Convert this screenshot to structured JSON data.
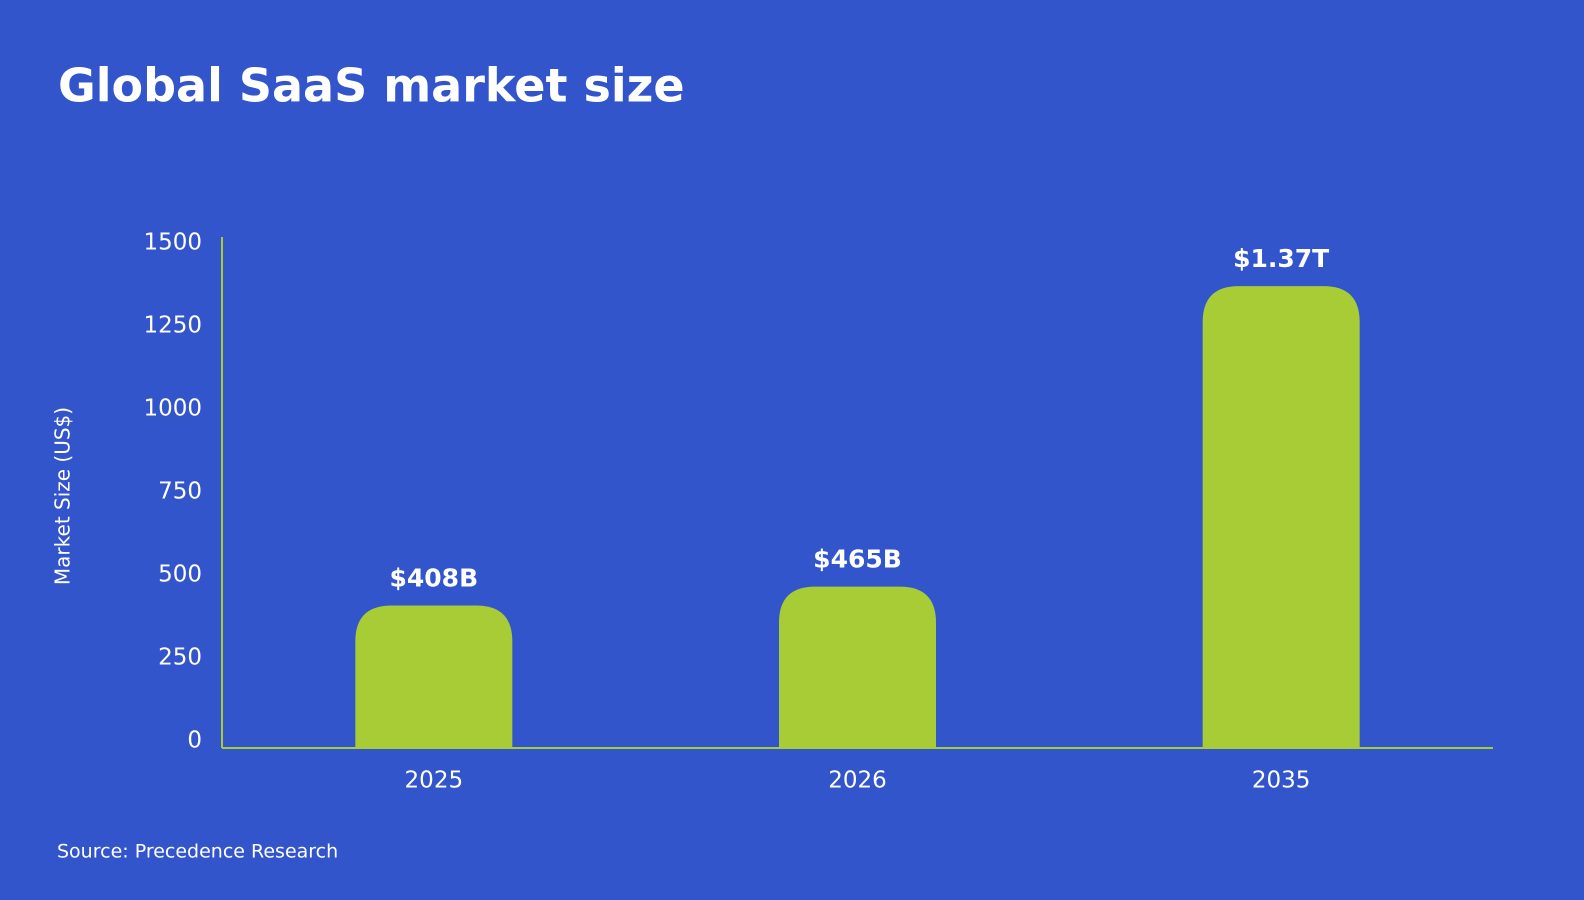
{
  "chart_data": {
    "type": "bar",
    "title": "Global SaaS market size",
    "y_label": "Market Size (US$)",
    "source": "Source: Precedence Research",
    "categories": [
      "2025",
      "2026",
      "2035"
    ],
    "values": [
      408,
      465,
      1370
    ],
    "value_labels": [
      "$408B",
      "$465B",
      "$1.37T"
    ],
    "color": "#a8cc35",
    "ylim": [
      0,
      1500
    ],
    "yticks": [
      0,
      250,
      500,
      750,
      1000,
      1250,
      1500
    ],
    "grid": false
  }
}
